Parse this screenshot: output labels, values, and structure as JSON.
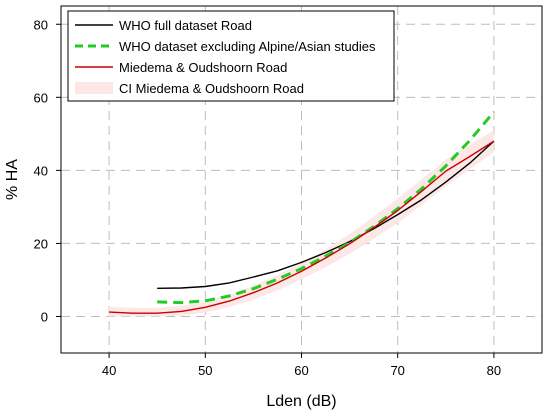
{
  "chart_data": {
    "type": "line",
    "xlabel": "Lden (dB)",
    "ylabel": "% HA",
    "xlim": [
      35,
      85
    ],
    "ylim": [
      -10,
      85
    ],
    "xticks": [
      40,
      50,
      60,
      70,
      80
    ],
    "yticks": [
      0,
      20,
      40,
      60,
      80
    ],
    "grid": "dashed vertical and horizontal gridlines",
    "legend_position": "top-left",
    "series": [
      {
        "name": "WHO full dataset Road",
        "color": "#000000",
        "style": "solid",
        "x": [
          45,
          47.5,
          50,
          52.5,
          55,
          57.5,
          60,
          62.5,
          65,
          67.5,
          70,
          72.5,
          75,
          77.5,
          80
        ],
        "y": [
          7.7,
          7.8,
          8.2,
          9.2,
          10.8,
          12.5,
          14.8,
          17.5,
          20.5,
          24.0,
          27.9,
          32.0,
          36.8,
          42.0,
          48.0
        ]
      },
      {
        "name": "WHO dataset excluding Alpine/Asian studies",
        "color": "#22cc22",
        "style": "dashed",
        "x": [
          45,
          47.5,
          50,
          52.5,
          55,
          57.5,
          60,
          62.5,
          65,
          67.5,
          70,
          72.5,
          75,
          77.5,
          80
        ],
        "y": [
          4.0,
          3.8,
          4.3,
          5.6,
          7.6,
          10.2,
          13.1,
          16.5,
          20.2,
          24.6,
          29.5,
          35.0,
          41.2,
          48.2,
          56.0
        ]
      },
      {
        "name": "Miedema & Oudshoorn Road",
        "color": "#cc0000",
        "style": "solid",
        "x": [
          40,
          42.5,
          45,
          47.5,
          50,
          52.5,
          55,
          57.5,
          60,
          62.5,
          65,
          67.5,
          70,
          72.5,
          75,
          77.5,
          80
        ],
        "y": [
          1.2,
          0.9,
          0.9,
          1.4,
          2.5,
          4.2,
          6.5,
          9.2,
          12.4,
          16.0,
          19.9,
          24.3,
          29.0,
          34.3,
          39.8,
          43.8,
          48.0
        ]
      },
      {
        "name": "CI Miedema & Oudshoorn Road",
        "color": "#fde6e6",
        "style": "band",
        "x": [
          40,
          42.5,
          45,
          47.5,
          50,
          52.5,
          55,
          57.5,
          60,
          62.5,
          65,
          67.5,
          70,
          72.5,
          75,
          77.5,
          80
        ],
        "lower": [
          0.0,
          0.0,
          0.0,
          0.2,
          1.1,
          2.6,
          4.6,
          7.1,
          10.2,
          13.5,
          17.2,
          21.2,
          25.6,
          30.6,
          35.6,
          40.3,
          45.0
        ],
        "upper": [
          2.6,
          2.4,
          2.4,
          2.9,
          4.0,
          5.9,
          8.4,
          11.4,
          14.6,
          18.4,
          22.6,
          27.3,
          32.3,
          37.6,
          43.0,
          47.0,
          51.0
        ]
      }
    ]
  }
}
